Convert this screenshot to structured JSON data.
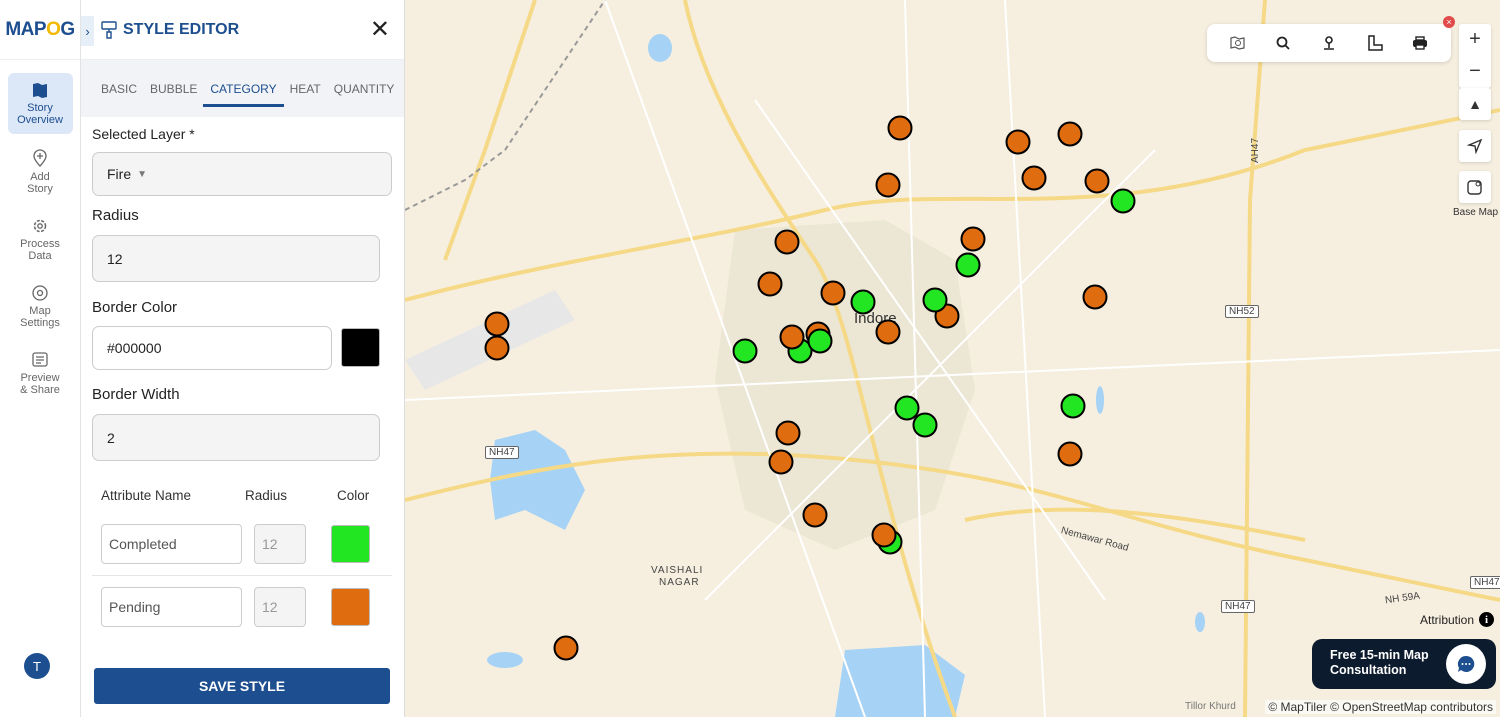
{
  "brand": {
    "logo_a": "MAP",
    "logo_b": "O",
    "logo_c": "G"
  },
  "rail": {
    "items": [
      {
        "label1": "Story",
        "label2": "Overview",
        "icon": "map-icon"
      },
      {
        "label1": "Add",
        "label2": "Story",
        "icon": "location-plus-icon"
      },
      {
        "label1": "Process",
        "label2": "Data",
        "icon": "gear-icon"
      },
      {
        "label1": "Map",
        "label2": "Settings",
        "icon": "settings-icon"
      },
      {
        "label1": "Preview",
        "label2": "& Share",
        "icon": "preview-icon"
      }
    ],
    "avatar": "T"
  },
  "panel": {
    "title": "STYLE EDITOR",
    "tabs": [
      "BASIC",
      "BUBBLE",
      "CATEGORY",
      "HEAT",
      "QUANTITY"
    ],
    "active_tab": "CATEGORY",
    "selected_layer_label": "Selected Layer *",
    "selected_layer": "Fire",
    "radius_label": "Radius",
    "radius": "12",
    "border_color_label": "Border Color",
    "border_color": "#000000",
    "border_width_label": "Border Width",
    "border_width": "2",
    "table_headers": [
      "Attribute Name",
      "Radius",
      "Color"
    ],
    "categories": [
      {
        "name": "Completed",
        "radius": "12",
        "color": "#22e622"
      },
      {
        "name": "Pending",
        "radius": "12",
        "color": "#e06c10"
      }
    ],
    "save_label": "SAVE STYLE"
  },
  "map": {
    "labels": {
      "city": "Indore",
      "vaishali1": "VAISHALI",
      "vaishali2": "NAGAR",
      "road": "Nemawar Road",
      "nh59a": "NH 59A",
      "tillor": "Tillor Khurd",
      "ah47": "AH47"
    },
    "shields": {
      "nh47a": "NH47",
      "nh52": "NH52",
      "nh47b": "NH47",
      "nh47c": "NH47"
    },
    "basemap_label": "Base Map",
    "attribution_label": "Attribution",
    "copyright": "© MapTiler © OpenStreetMap contributors",
    "consult_line1": "Free 15-min Map",
    "consult_line2": "Consultation",
    "toolbar_icons": [
      "map-search-icon",
      "search-icon",
      "pin-icon",
      "ruler-icon",
      "print-icon"
    ]
  }
}
